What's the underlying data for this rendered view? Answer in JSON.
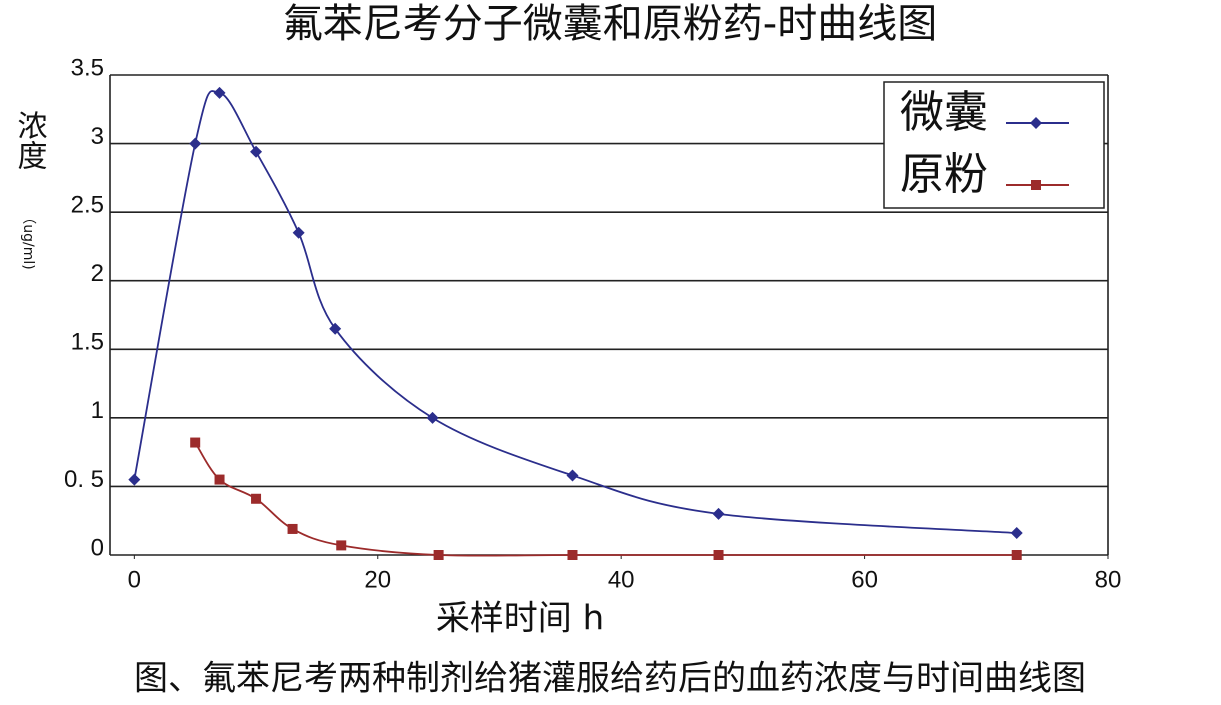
{
  "chart_data": {
    "type": "line",
    "title": "氟苯尼考分子微囊和原粉药-时曲线图",
    "y_label": "浓度",
    "y_unit": "（ug/ml)",
    "x_label": "采样时间 h",
    "caption": "图、氟苯尼考两种制剂给猪灌服给药后的血药浓度与时间曲线图",
    "xlim": [
      -2,
      80
    ],
    "xticks": [
      0,
      20,
      40,
      60,
      80
    ],
    "ylim": [
      0,
      3.5
    ],
    "yticks": [
      0,
      {
        "value": 0.5,
        "label": "0. 5"
      },
      1,
      1.5,
      2,
      2.5,
      3,
      3.5
    ],
    "grid": true,
    "legend": "upper right",
    "series": [
      {
        "name": "微囊",
        "color": "#2b2e8c",
        "marker": "diamond",
        "x": [
          0,
          5,
          7,
          10,
          13.5,
          16.5,
          24.5,
          36,
          48,
          72.5
        ],
        "values": [
          0.55,
          3.0,
          3.37,
          2.94,
          2.35,
          1.65,
          1.0,
          0.58,
          0.3,
          0.16
        ]
      },
      {
        "name": "原粉",
        "color": "#9c2b2b",
        "marker": "square",
        "x": [
          5,
          7,
          10,
          13,
          17,
          25,
          36,
          48,
          72.5
        ],
        "values": [
          0.82,
          0.55,
          0.41,
          0.19,
          0.07,
          0,
          0,
          0,
          0
        ]
      }
    ]
  }
}
